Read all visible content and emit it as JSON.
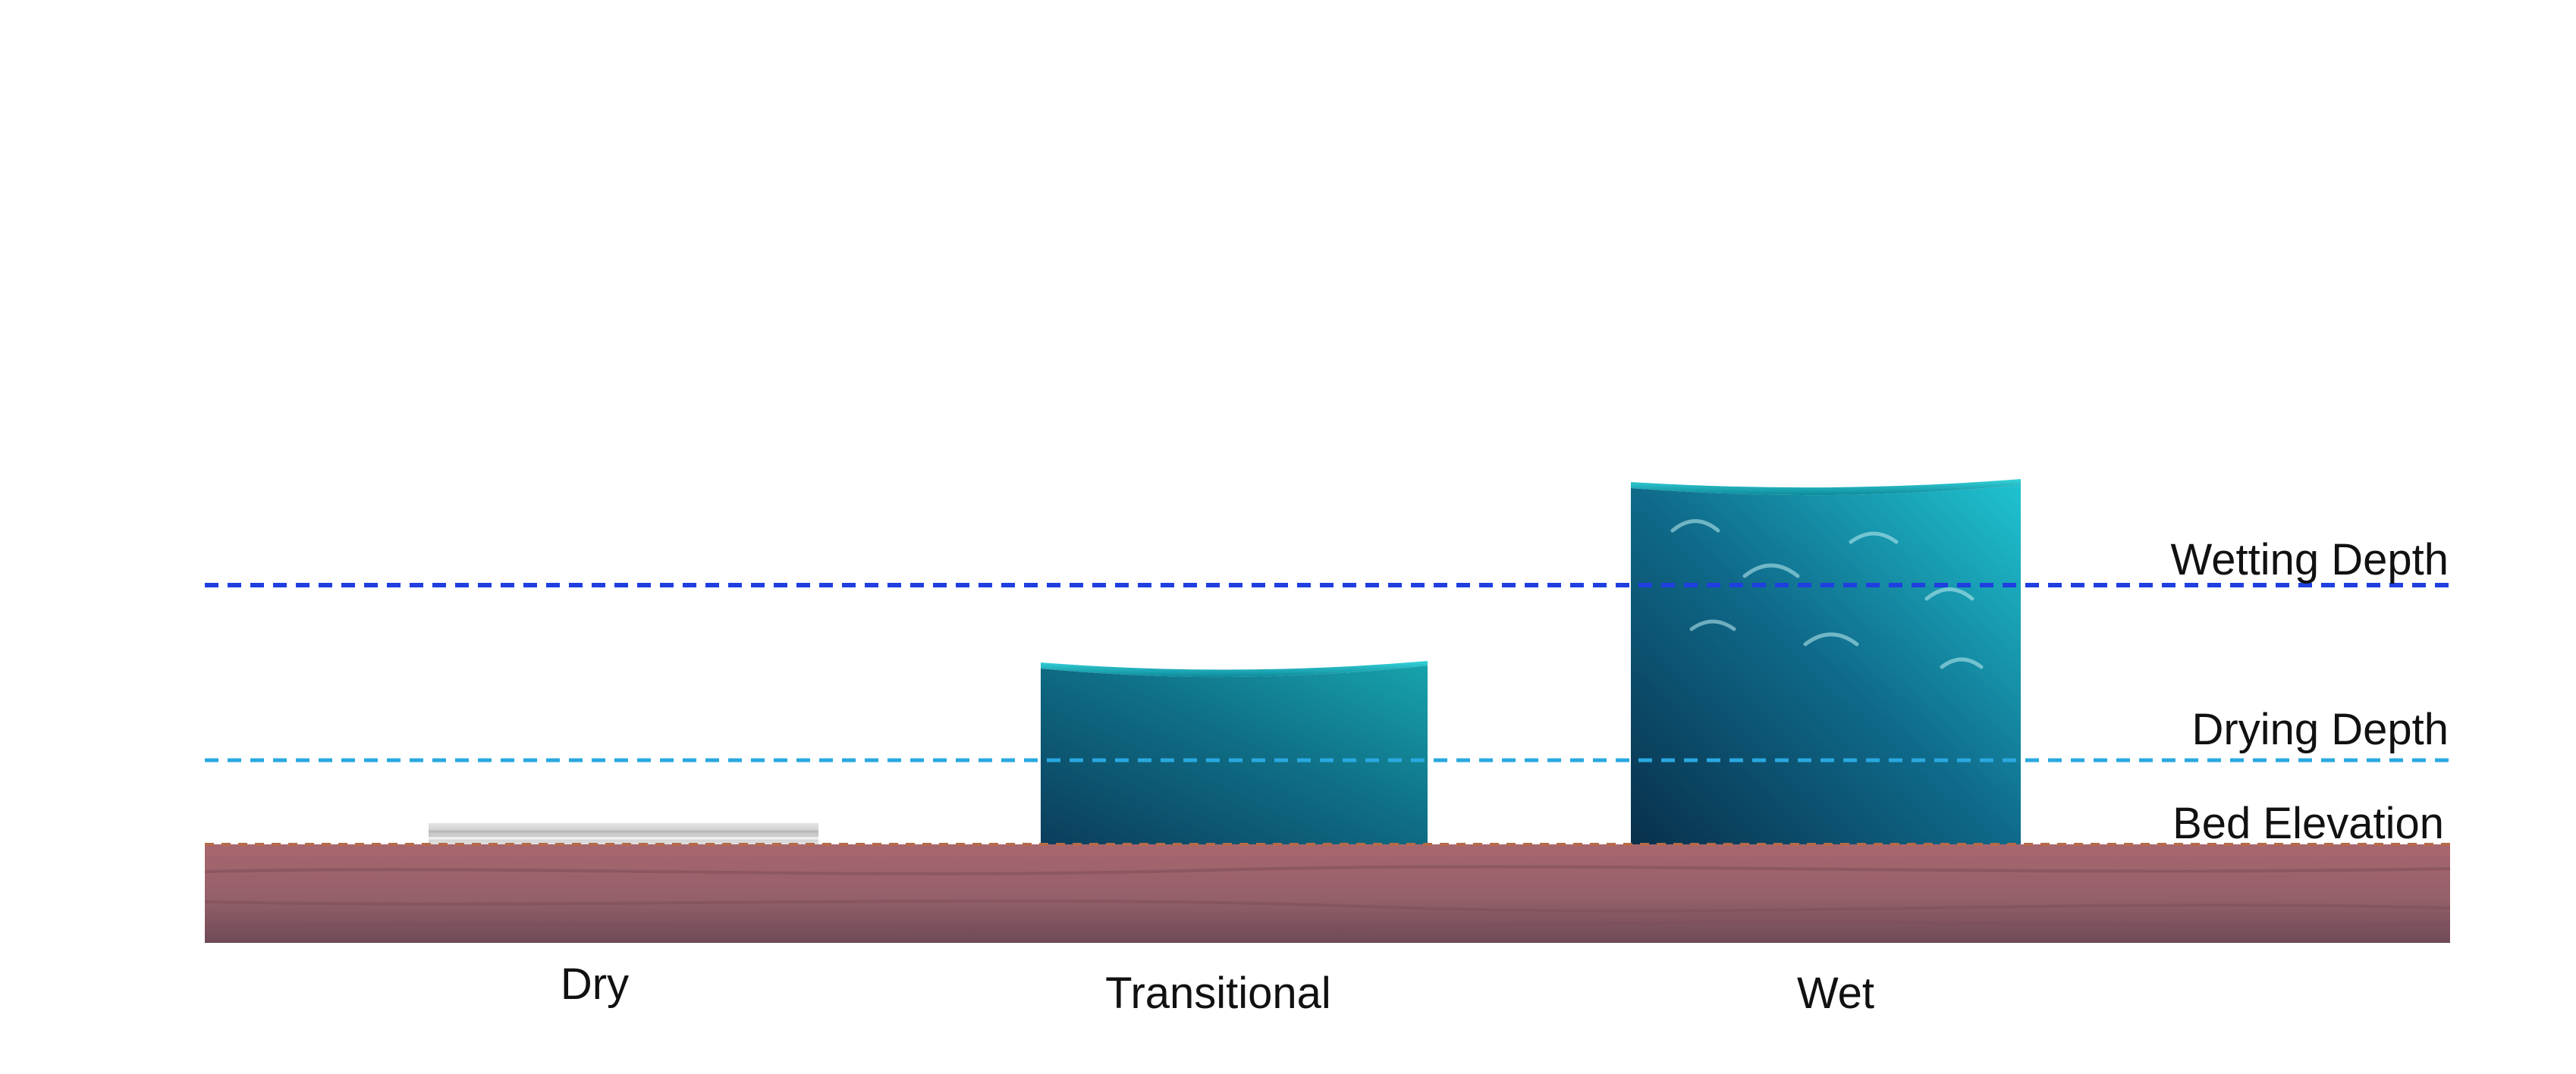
{
  "diagram": {
    "levels": {
      "wetting_depth": {
        "label": "Wetting Depth",
        "color": "#1f3fe0"
      },
      "drying_depth": {
        "label": "Drying Depth",
        "color": "#29a8e0"
      },
      "bed_elevation": {
        "label": "Bed Elevation",
        "color": "#b56a4a"
      }
    },
    "cells": {
      "dry": {
        "label": "Dry"
      },
      "transitional": {
        "label": "Transitional"
      },
      "wet": {
        "label": "Wet"
      }
    },
    "colors": {
      "bed_top": "#a8666e",
      "bed_bottom": "#6e4a56",
      "water_light": "#21c0cc",
      "water_dark": "#0a3f5e",
      "dry_slab": "#d6d6d6"
    }
  }
}
